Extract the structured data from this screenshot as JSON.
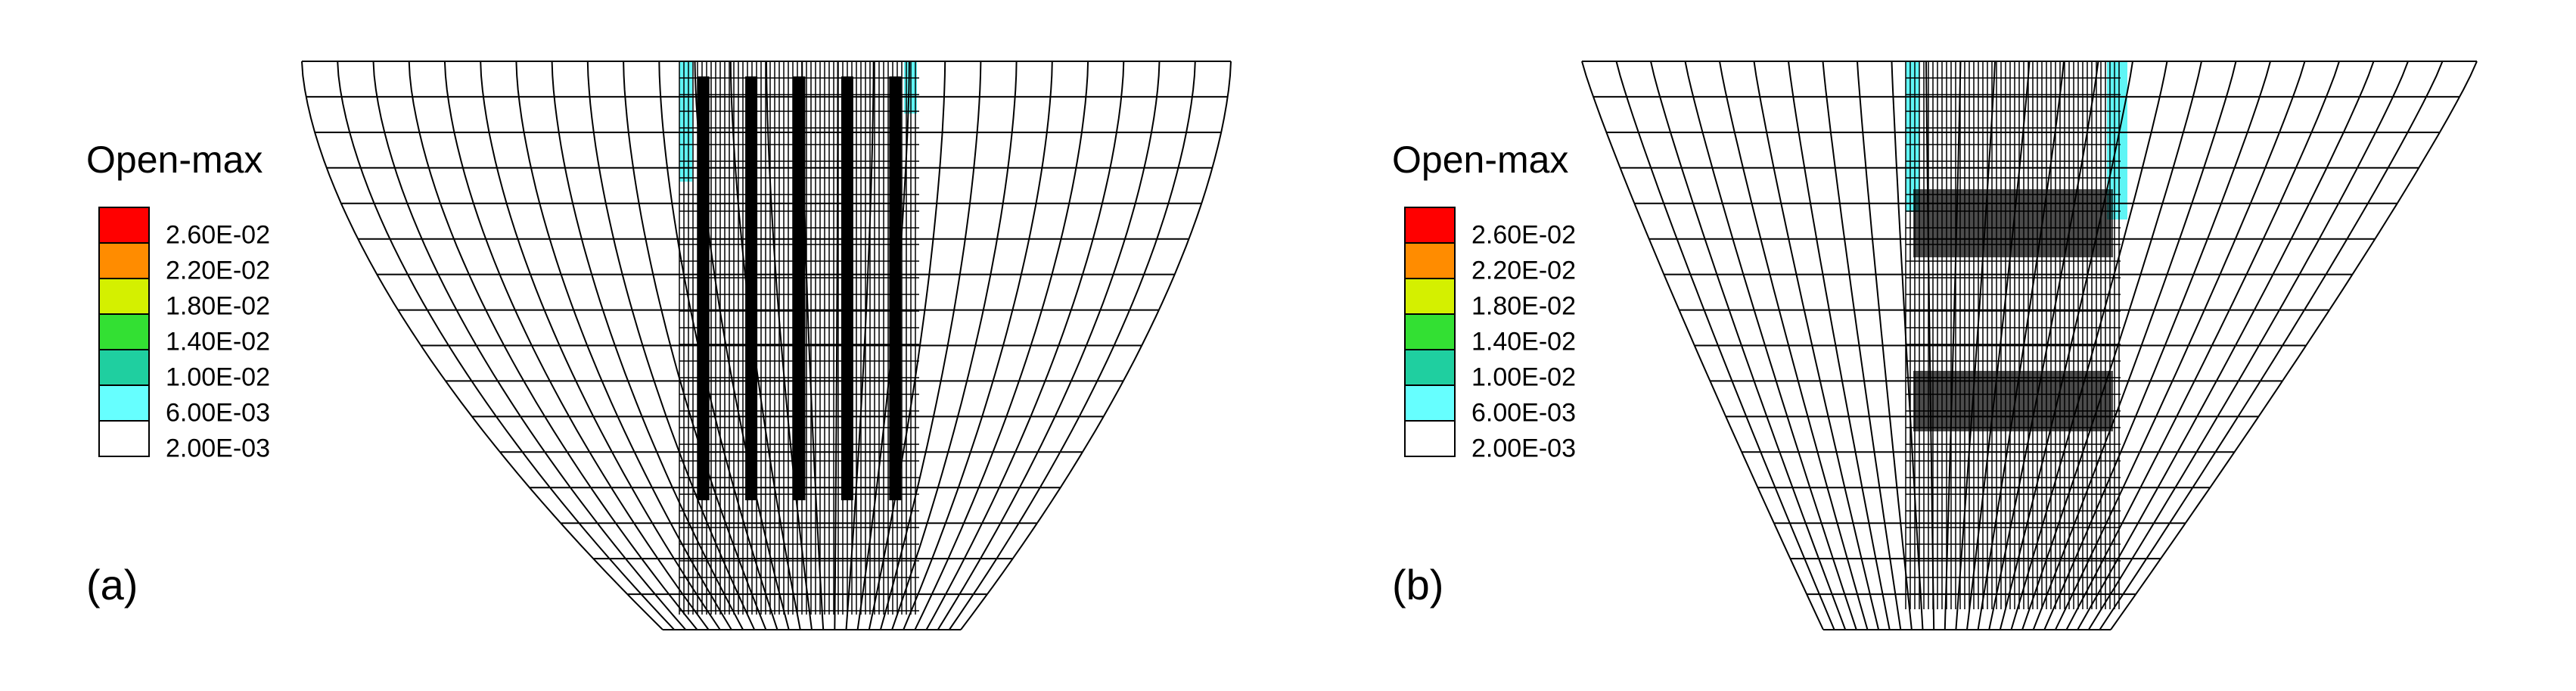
{
  "panels": [
    {
      "label": "(a)",
      "legend": {
        "title": "Open-max",
        "entries": [
          "2.60E-02",
          "2.20E-02",
          "1.80E-02",
          "1.40E-02",
          "1.00E-02",
          "6.00E-03",
          "2.00E-03"
        ],
        "colors": [
          "#ff0000",
          "#ff8c00",
          "#d4f000",
          "#33e033",
          "#1fcfa0",
          "#66ffff",
          "#ffffff"
        ]
      }
    },
    {
      "label": "(b)",
      "legend": {
        "title": "Open-max",
        "entries": [
          "2.60E-02",
          "2.20E-02",
          "1.80E-02",
          "1.40E-02",
          "1.00E-02",
          "6.00E-03",
          "2.00E-03"
        ],
        "colors": [
          "#ff0000",
          "#ff8c00",
          "#d4f000",
          "#33e033",
          "#1fcfa0",
          "#66ffff",
          "#ffffff"
        ]
      }
    }
  ]
}
